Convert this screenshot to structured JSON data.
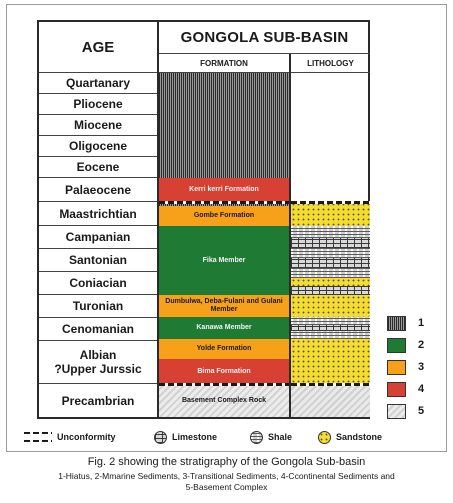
{
  "header": {
    "age": "AGE",
    "basin": "GONGOLA SUB-BASIN",
    "formation": "FORMATION",
    "lithology": "LITHOLOGY"
  },
  "ages": [
    "Quartanary",
    "Pliocene",
    "Miocene",
    "Oligocene",
    "Eocene",
    "Palaeocene",
    "Maastrichtian",
    "Campanian",
    "Santonian",
    "Coniacian",
    "Turonian",
    "Cenomanian",
    "Albian\n?Upper Jurssic",
    "Precambrian"
  ],
  "formations": {
    "kerri_kerri": "Kerri kerri Formation",
    "gombe": "Gombe Formation",
    "fika": "Fika Member",
    "dumbulwa": "Dumbulwa, Deba-Fulani and Gulani Member",
    "kanawa": "Kanawa Member",
    "yolde": "Yolde Formation",
    "bima": "Bima Formation",
    "basement": "Basement Complex Rock"
  },
  "key": {
    "items": [
      {
        "label": "1",
        "fill": "hiatus"
      },
      {
        "label": "2",
        "fill": "#1f7a33"
      },
      {
        "label": "3",
        "fill": "#f7a11a"
      },
      {
        "label": "4",
        "fill": "#d64133"
      },
      {
        "label": "5",
        "fill": "basement"
      }
    ]
  },
  "legend": {
    "unconformity": "Unconformity",
    "limestone": "Limestone",
    "shale": "Shale",
    "sandstone": "Sandstone"
  },
  "caption": {
    "title": "Fig. 2 showing the stratigraphy of the Gongola Sub-basin",
    "line1": "1-Hiatus, 2-Mmarine Sediments, 3-Transitional Sediments, 4-Ccontinental Sediments and",
    "line2": "5-Basement Complex"
  },
  "colors": {
    "continental": "#d64133",
    "transitional": "#f7a11a",
    "marine": "#1f7a33",
    "sandstone": "#f5dc2e"
  }
}
